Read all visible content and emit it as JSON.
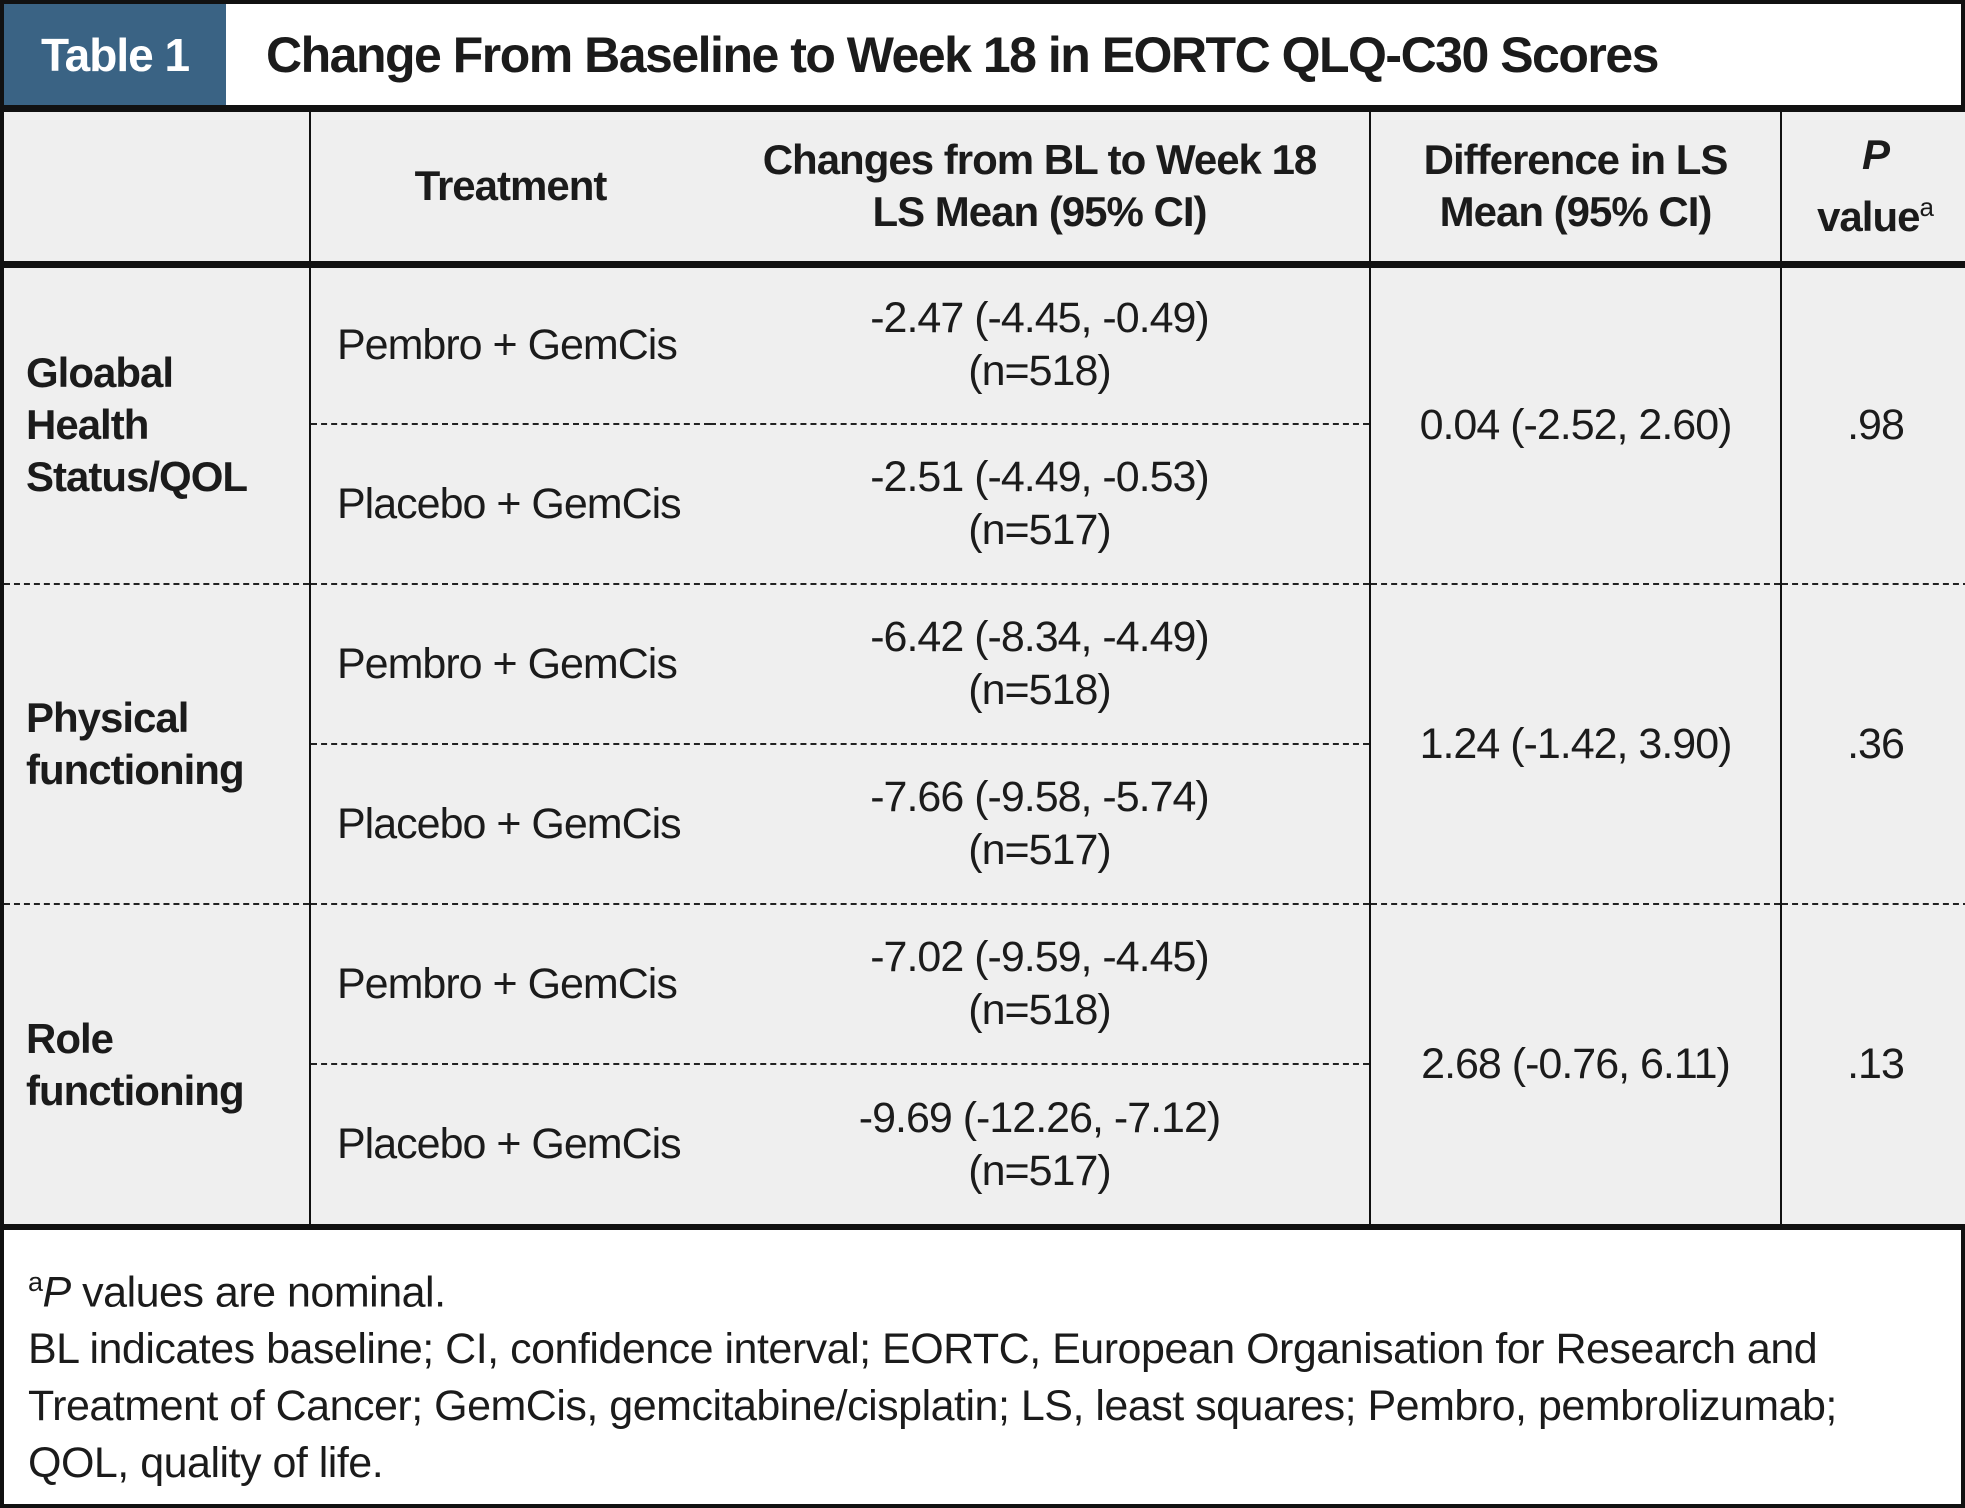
{
  "title_bar": {
    "tag": "Table 1",
    "title": "Change From Baseline to Week 18 in EORTC QLQ-C30 Scores"
  },
  "colors": {
    "accent_blue": "#3a6384",
    "table_bg": "#efefef",
    "border": "#111111"
  },
  "header": {
    "treatment": "Treatment",
    "changes_line1": "Changes from BL to Week 18",
    "changes_line2": "LS Mean (95% CI)",
    "difference_line1": "Difference in LS",
    "difference_line2": "Mean (95% CI)",
    "p_line1": "P",
    "p_line2": "value",
    "p_superscript": "a"
  },
  "groups": [
    {
      "label": "Gloabal Health Status/QOL",
      "rows": [
        {
          "treatment": "Pembro + GemCis",
          "change": "-2.47 (-4.45, -0.49)",
          "n": "(n=518)"
        },
        {
          "treatment": "Placebo + GemCis",
          "change": "-2.51 (-4.49, -0.53)",
          "n": "(n=517)"
        }
      ],
      "difference": "0.04 (-2.52, 2.60)",
      "p_value": ".98"
    },
    {
      "label": "Physical functioning",
      "rows": [
        {
          "treatment": "Pembro + GemCis",
          "change": "-6.42 (-8.34, -4.49)",
          "n": "(n=518)"
        },
        {
          "treatment": "Placebo + GemCis",
          "change": "-7.66 (-9.58, -5.74)",
          "n": "(n=517)"
        }
      ],
      "difference": "1.24 (-1.42, 3.90)",
      "p_value": ".36"
    },
    {
      "label": "Role functioning",
      "rows": [
        {
          "treatment": "Pembro + GemCis",
          "change": "-7.02 (-9.59, -4.45)",
          "n": "(n=518)"
        },
        {
          "treatment": "Placebo + GemCis",
          "change": "-9.69 (-12.26, -7.12)",
          "n": "(n=517)"
        }
      ],
      "difference": "2.68 (-0.76, 6.11)",
      "p_value": ".13"
    }
  ],
  "footnotes": {
    "note_a_sup": "a",
    "note_a_p": "P",
    "note_a_rest": " values are nominal.",
    "abbreviations": "BL indicates baseline; CI, confidence interval; EORTC, European Organisation for Research and Treatment of Cancer; GemCis, gemcitabine/cisplatin; LS, least squares; Pembro, pembrolizumab; QOL, quality of life."
  }
}
